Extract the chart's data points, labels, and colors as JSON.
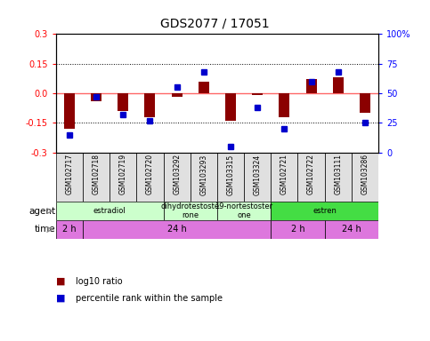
{
  "title": "GDS2077 / 17051",
  "samples": [
    "GSM102717",
    "GSM102718",
    "GSM102719",
    "GSM102720",
    "GSM103292",
    "GSM103293",
    "GSM103315",
    "GSM103324",
    "GSM102721",
    "GSM102722",
    "GSM103111",
    "GSM103286"
  ],
  "log10_ratio": [
    -0.18,
    -0.04,
    -0.09,
    -0.12,
    -0.02,
    0.06,
    -0.14,
    -0.01,
    -0.12,
    0.07,
    0.08,
    -0.1
  ],
  "percentile": [
    15,
    47,
    32,
    27,
    55,
    68,
    5,
    38,
    20,
    60,
    68,
    25
  ],
  "ylim": [
    -0.3,
    0.3
  ],
  "yticks_left": [
    -0.3,
    -0.15,
    0.0,
    0.15,
    0.3
  ],
  "yticks_right": [
    0,
    25,
    50,
    75,
    100
  ],
  "bar_color": "#8B0000",
  "dot_color": "#0000CD",
  "zero_line_color": "#FF6666",
  "dotted_line_color": "#000000",
  "agent_row": [
    {
      "label": "estradiol",
      "start": 0,
      "end": 4,
      "color": "#CCFFCC"
    },
    {
      "label": "dihydrotestoste\nrone",
      "start": 4,
      "end": 6,
      "color": "#CCFFCC"
    },
    {
      "label": "19-nortestoster\none",
      "start": 6,
      "end": 8,
      "color": "#CCFFCC"
    },
    {
      "label": "estren",
      "start": 8,
      "end": 12,
      "color": "#44DD44"
    }
  ],
  "time_row": [
    {
      "label": "2 h",
      "start": 0,
      "end": 1,
      "color": "#DD77DD"
    },
    {
      "label": "24 h",
      "start": 1,
      "end": 8,
      "color": "#DD77DD"
    },
    {
      "label": "2 h",
      "start": 8,
      "end": 10,
      "color": "#DD77DD"
    },
    {
      "label": "24 h",
      "start": 10,
      "end": 12,
      "color": "#DD77DD"
    }
  ],
  "legend_red_label": "log10 ratio",
  "legend_blue_label": "percentile rank within the sample",
  "title_fontsize": 10
}
